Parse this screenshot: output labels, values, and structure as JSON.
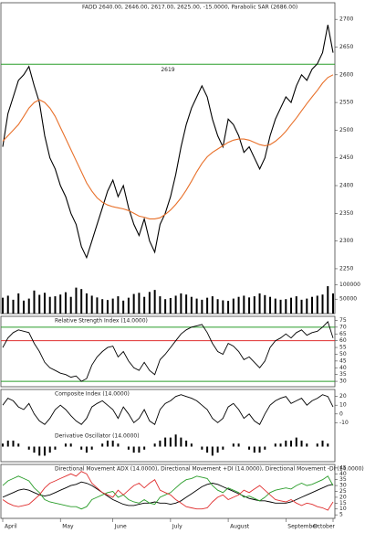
{
  "chart_data": [
    {
      "type": "line",
      "title": "FADD 2640.00, 2646.00, 2617.00, 2625.00, -15.0000, Parabolic SAR (2686.00)",
      "ylim": [
        2240,
        2730
      ],
      "yticks": [
        2700,
        2650,
        2600,
        2550,
        2500,
        2450,
        2400,
        2350,
        2300,
        2250
      ],
      "hlines": [
        {
          "value": 2619,
          "color": "#2a9d2a",
          "label": "2619"
        }
      ],
      "series": [
        {
          "color": "#000000",
          "values": [
            2470,
            2530,
            2560,
            2590,
            2600,
            2615,
            2580,
            2550,
            2490,
            2450,
            2430,
            2400,
            2380,
            2350,
            2330,
            2290,
            2270,
            2300,
            2330,
            2360,
            2390,
            2410,
            2380,
            2400,
            2360,
            2330,
            2310,
            2340,
            2300,
            2280,
            2330,
            2350,
            2380,
            2420,
            2470,
            2510,
            2540,
            2560,
            2580,
            2560,
            2520,
            2490,
            2470,
            2520,
            2510,
            2490,
            2460,
            2470,
            2450,
            2430,
            2450,
            2490,
            2520,
            2540,
            2560,
            2550,
            2580,
            2600,
            2590,
            2610,
            2620,
            2640,
            2690,
            2640
          ]
        },
        {
          "color": "#e8702a",
          "values": [
            2480,
            2490,
            2500,
            2510,
            2525,
            2540,
            2550,
            2555,
            2550,
            2540,
            2525,
            2505,
            2485,
            2465,
            2445,
            2425,
            2405,
            2390,
            2378,
            2370,
            2365,
            2362,
            2360,
            2358,
            2355,
            2350,
            2345,
            2343,
            2340,
            2340,
            2342,
            2348,
            2356,
            2366,
            2378,
            2392,
            2408,
            2425,
            2440,
            2452,
            2460,
            2466,
            2472,
            2478,
            2482,
            2484,
            2484,
            2482,
            2478,
            2474,
            2472,
            2474,
            2480,
            2488,
            2498,
            2510,
            2522,
            2535,
            2548,
            2560,
            2572,
            2585,
            2595,
            2600
          ]
        }
      ]
    },
    {
      "type": "bar",
      "ylim": [
        0,
        130000
      ],
      "yticks": [
        100000,
        50000
      ],
      "series": [
        {
          "color": "#000000",
          "values": [
            55000,
            62000,
            48000,
            70000,
            45000,
            52000,
            80000,
            65000,
            72000,
            58000,
            60000,
            66000,
            74000,
            58000,
            90000,
            85000,
            70000,
            62000,
            56000,
            50000,
            47000,
            52000,
            60000,
            45000,
            55000,
            68000,
            72000,
            58000,
            75000,
            82000,
            60000,
            50000,
            54000,
            62000,
            70000,
            66000,
            58000,
            52000,
            48000,
            55000,
            60000,
            50000,
            46000,
            44000,
            52000,
            58000,
            62000,
            56000,
            60000,
            70000,
            64000,
            58000,
            52000,
            48000,
            50000,
            55000,
            60000,
            48000,
            52000,
            58000,
            62000,
            66000,
            95000,
            70000
          ]
        }
      ]
    },
    {
      "type": "line",
      "title": "Relative Strength Index (14.0000)",
      "ylim": [
        26,
        78
      ],
      "yticks": [
        75,
        70,
        65,
        60,
        55,
        50,
        45,
        40,
        35,
        30
      ],
      "hlines": [
        {
          "value": 70,
          "color": "#2a9d2a"
        },
        {
          "value": 60,
          "color": "#e03030"
        },
        {
          "value": 30,
          "color": "#2a9d2a"
        }
      ],
      "series": [
        {
          "color": "#000000",
          "values": [
            55,
            62,
            66,
            68,
            67,
            66,
            58,
            52,
            44,
            40,
            38,
            36,
            35,
            33,
            34,
            30,
            32,
            42,
            48,
            52,
            55,
            56,
            48,
            52,
            45,
            40,
            38,
            44,
            38,
            35,
            46,
            50,
            55,
            60,
            65,
            68,
            70,
            71,
            72,
            66,
            58,
            52,
            50,
            58,
            56,
            52,
            46,
            48,
            44,
            40,
            45,
            55,
            60,
            62,
            65,
            62,
            66,
            68,
            64,
            66,
            67,
            70,
            74,
            62
          ]
        }
      ]
    },
    {
      "type": "line",
      "title": "Composite Index (14.0000)",
      "ylim": [
        -18,
        28
      ],
      "yticks": [
        20,
        10,
        0,
        -10
      ],
      "series": [
        {
          "color": "#000000",
          "values": [
            10,
            18,
            15,
            8,
            5,
            12,
            0,
            -8,
            -12,
            -5,
            5,
            10,
            5,
            -2,
            -8,
            -12,
            -5,
            8,
            12,
            15,
            10,
            5,
            -5,
            8,
            0,
            -10,
            -5,
            5,
            -8,
            -12,
            5,
            12,
            15,
            20,
            22,
            20,
            18,
            15,
            10,
            5,
            -5,
            -10,
            -5,
            8,
            12,
            5,
            -5,
            0,
            -8,
            -12,
            0,
            10,
            15,
            18,
            20,
            12,
            15,
            18,
            10,
            15,
            18,
            22,
            20,
            8
          ]
        }
      ]
    },
    {
      "type": "bar",
      "title": "Derivative Oscillator (14.0000)",
      "ylim": [
        -5,
        5
      ],
      "series": [
        {
          "color": "#000000",
          "values": [
            1,
            2,
            2,
            1,
            0,
            -1,
            -2,
            -3,
            -3,
            -2,
            -1,
            0,
            1,
            1,
            0,
            -1,
            -2,
            -1,
            0,
            1,
            2,
            2,
            1,
            0,
            -1,
            -2,
            -2,
            -1,
            0,
            1,
            2,
            3,
            3,
            4,
            3,
            2,
            1,
            0,
            -1,
            -2,
            -3,
            -2,
            -1,
            0,
            1,
            1,
            0,
            -1,
            -2,
            -2,
            -1,
            0,
            1,
            1,
            2,
            2,
            3,
            2,
            1,
            0,
            1,
            2,
            1,
            0
          ]
        }
      ]
    },
    {
      "type": "line",
      "title": "Directional Movement ADX (14.0000), Directional Movement +DI (14.0000), Directional Movement -DI (14.0000)",
      "ylim": [
        2,
        48
      ],
      "yticks": [
        45,
        40,
        35,
        30,
        25,
        20,
        15,
        10,
        5
      ],
      "categories": [
        "April",
        null,
        null,
        null,
        null,
        null,
        null,
        null,
        null,
        null,
        null,
        "May",
        null,
        null,
        null,
        null,
        null,
        null,
        null,
        null,
        null,
        "June",
        null,
        null,
        null,
        null,
        null,
        null,
        null,
        null,
        null,
        null,
        "July",
        null,
        null,
        null,
        null,
        null,
        null,
        null,
        null,
        null,
        null,
        "August",
        null,
        null,
        null,
        null,
        null,
        null,
        null,
        null,
        null,
        null,
        "September",
        null,
        null,
        null,
        null,
        null,
        null,
        null,
        null,
        "October"
      ],
      "series": [
        {
          "color": "#000000",
          "values": [
            20,
            22,
            24,
            26,
            27,
            26,
            24,
            22,
            21,
            22,
            24,
            26,
            28,
            30,
            31,
            33,
            32,
            30,
            27,
            24,
            21,
            18,
            16,
            14,
            13,
            13,
            14,
            15,
            15,
            16,
            15,
            15,
            14,
            15,
            17,
            20,
            23,
            26,
            29,
            31,
            32,
            31,
            29,
            27,
            25,
            23,
            21,
            19,
            18,
            17,
            17,
            16,
            15,
            15,
            15,
            16,
            18,
            20,
            22,
            24,
            26,
            28,
            30,
            31
          ]
        },
        {
          "color": "#2a9d2a",
          "values": [
            30,
            34,
            36,
            38,
            36,
            34,
            28,
            24,
            18,
            16,
            15,
            14,
            13,
            12,
            12,
            10,
            12,
            18,
            20,
            22,
            24,
            25,
            20,
            22,
            18,
            16,
            15,
            18,
            15,
            14,
            20,
            22,
            24,
            28,
            32,
            35,
            36,
            38,
            37,
            36,
            30,
            26,
            24,
            28,
            26,
            24,
            20,
            21,
            19,
            17,
            20,
            24,
            26,
            27,
            28,
            27,
            30,
            32,
            30,
            31,
            33,
            35,
            38,
            30
          ]
        },
        {
          "color": "#e03030",
          "values": [
            18,
            15,
            13,
            12,
            13,
            14,
            18,
            22,
            28,
            32,
            34,
            36,
            38,
            40,
            38,
            42,
            40,
            32,
            28,
            24,
            22,
            20,
            26,
            22,
            26,
            30,
            32,
            28,
            32,
            35,
            26,
            24,
            22,
            18,
            15,
            12,
            11,
            10,
            10,
            11,
            16,
            20,
            22,
            18,
            20,
            22,
            26,
            24,
            27,
            30,
            26,
            22,
            18,
            17,
            16,
            18,
            15,
            13,
            15,
            14,
            12,
            11,
            9,
            16
          ]
        }
      ]
    }
  ]
}
